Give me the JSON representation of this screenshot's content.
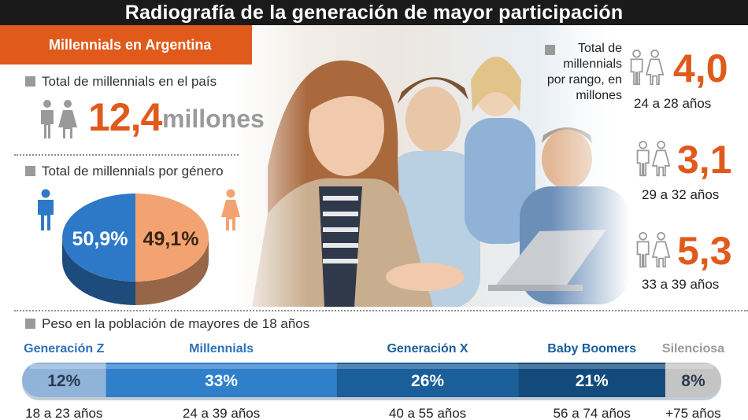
{
  "title": "Radiografía de la generación de mayor participación",
  "banner": "Millennials en Argentina",
  "total_pais": {
    "label": "Total de millennials en el país",
    "value": "12,4",
    "unit": "millones"
  },
  "genero": {
    "label": "Total de millennials por género"
  },
  "rango": {
    "title": "Total de millennials por rango, en millones",
    "items": [
      {
        "value": "4,0",
        "label": "24 a 28 años"
      },
      {
        "value": "3,1",
        "label": "29 a 32 años"
      },
      {
        "value": "5,3",
        "label": "33 a 39 años"
      }
    ]
  },
  "peso": {
    "label": "Peso en la población de mayores de 18 años"
  },
  "colors": {
    "orange": "#e05a1c",
    "male_blue": "#2e79c7",
    "female_orange": "#f3a372",
    "gen_z": "#8fb3d9",
    "millennials": "#2f7fcb",
    "gen_x": "#1a5e9a",
    "boomers": "#134a7c",
    "silenciosa": "#c4c4c4"
  },
  "chart_data": [
    {
      "type": "pie",
      "labels": [
        "Hombres",
        "Mujeres"
      ],
      "values": [
        50.9,
        49.1
      ],
      "value_labels": [
        "50,9%",
        "49,1%"
      ],
      "colors": [
        "#2e79c7",
        "#f3a372"
      ]
    },
    {
      "type": "bar",
      "orientation": "horizontal-stacked",
      "categories": [
        "Generación Z",
        "Millennials",
        "Generación X",
        "Baby Boomers",
        "Silenciosa"
      ],
      "values": [
        12,
        33,
        26,
        21,
        8
      ],
      "value_labels": [
        "12%",
        "33%",
        "26%",
        "21%",
        "8%"
      ],
      "ranges": [
        "18 a 23 años",
        "24 a 39 años",
        "40 a 55 años",
        "56 a 74 años",
        "+75 años"
      ],
      "colors": [
        "#8fb3d9",
        "#2f7fcb",
        "#1a5e9a",
        "#134a7c",
        "#c4c4c4"
      ]
    }
  ]
}
